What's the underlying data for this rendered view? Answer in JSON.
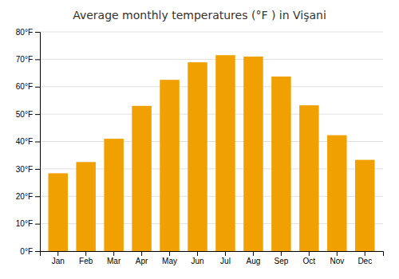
{
  "chart_data": {
    "type": "bar",
    "title": "Average monthly temperatures (°F ) in Vişani",
    "categories": [
      "Jan",
      "Feb",
      "Mar",
      "Apr",
      "May",
      "Jun",
      "Jul",
      "Aug",
      "Sep",
      "Oct",
      "Nov",
      "Dec"
    ],
    "values": [
      28.4,
      32.5,
      41.0,
      53.0,
      62.5,
      68.9,
      71.5,
      71.0,
      63.7,
      53.2,
      42.3,
      33.3
    ],
    "color": "#F0A000",
    "ylim": [
      0,
      80
    ],
    "yticks": [
      {
        "value": 0,
        "label": "0°F"
      },
      {
        "value": 10,
        "label": "10°F"
      },
      {
        "value": 20,
        "label": "20°F"
      },
      {
        "value": 30,
        "label": "30°F"
      },
      {
        "value": 40,
        "label": "40°F"
      },
      {
        "value": 50,
        "label": "50°F"
      },
      {
        "value": 60,
        "label": "60°F"
      },
      {
        "value": 70,
        "label": "70°F"
      },
      {
        "value": 80,
        "label": "80°F"
      }
    ],
    "grid": true
  }
}
